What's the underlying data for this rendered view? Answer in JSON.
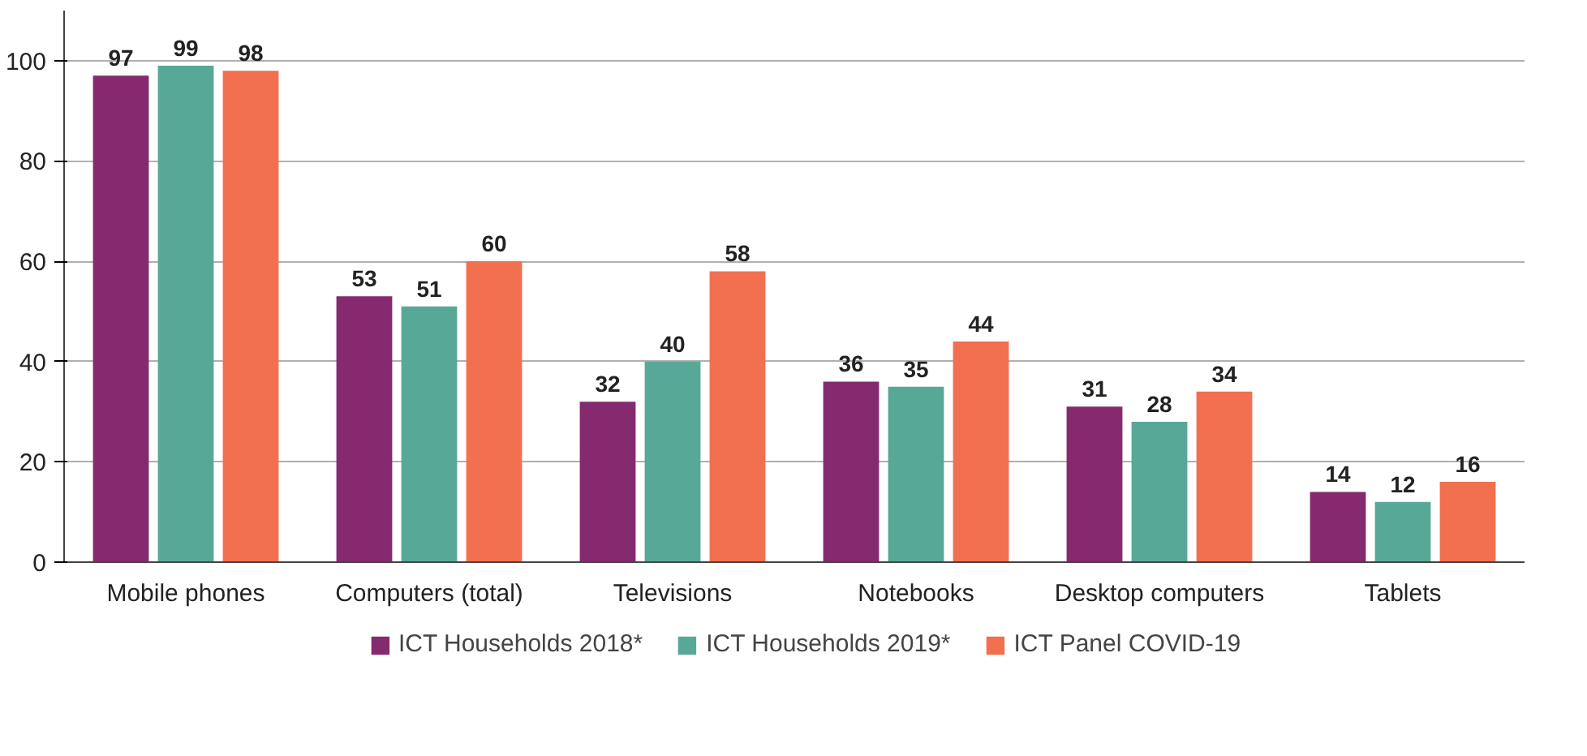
{
  "chart_data": {
    "type": "bar",
    "categories": [
      "Mobile phones",
      "Computers (total)",
      "Televisions",
      "Notebooks",
      "Desktop computers",
      "Tablets"
    ],
    "series": [
      {
        "name": "ICT Households 2018*",
        "color": "#852a6e",
        "values": [
          97,
          53,
          32,
          36,
          31,
          14
        ]
      },
      {
        "name": "ICT Households 2019*",
        "color": "#58a898",
        "values": [
          99,
          51,
          40,
          35,
          28,
          12
        ]
      },
      {
        "name": "ICT Panel COVID-19",
        "color": "#f26f50",
        "values": [
          98,
          60,
          58,
          44,
          34,
          16
        ]
      }
    ],
    "ylim": [
      0,
      110
    ],
    "yticks": [
      0,
      20,
      40,
      60,
      80,
      100
    ],
    "grid": "y",
    "legend": "bottom",
    "data_labels": true
  }
}
